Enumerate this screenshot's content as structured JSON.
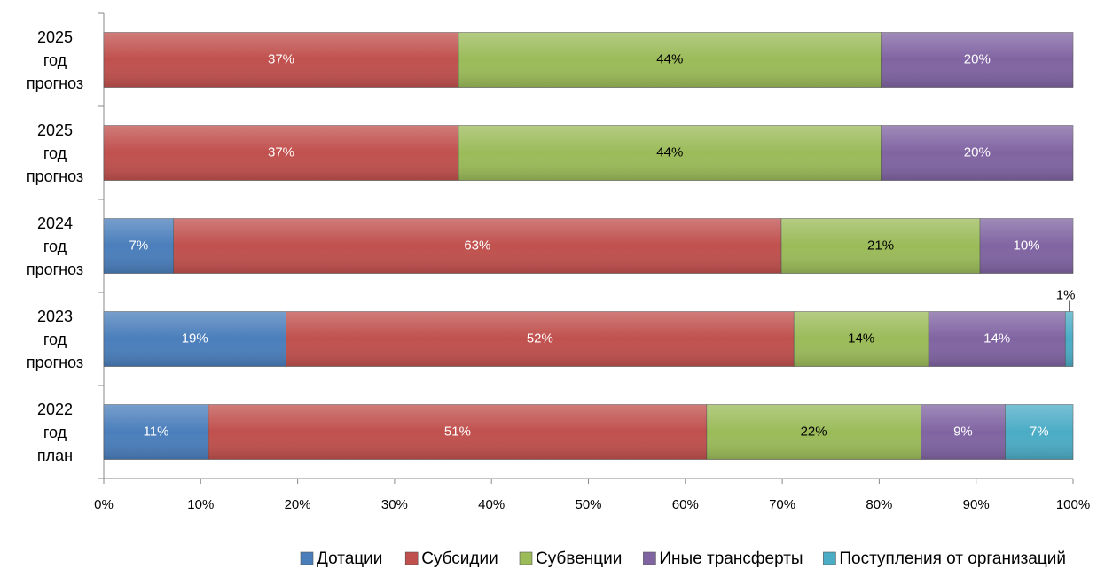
{
  "chart_data": {
    "type": "bar",
    "orientation": "horizontal",
    "stacked": true,
    "categories": [
      "2022\nгод\nплан",
      "2023\nгод\nпрогноз",
      "2024\nгод\nпрогноз",
      "2025\nгод\nпрогноз",
      "2025\nгод\nпрогноз"
    ],
    "series": [
      {
        "name": "Дотации",
        "color": "#4a7ebb",
        "label_color": "#ffffff",
        "values": [
          10.8,
          18.8,
          7.2,
          0,
          0
        ],
        "value_labels": [
          "11%",
          "19%",
          "7%",
          null,
          null
        ]
      },
      {
        "name": "Субсидии",
        "color": "#c0504d",
        "label_color": "#ffffff",
        "values": [
          51.4,
          52.4,
          62.7,
          36.6,
          36.6
        ],
        "value_labels": [
          "51%",
          "52%",
          "63%",
          "37%",
          "37%"
        ]
      },
      {
        "name": "Субвенции",
        "color": "#9bbb59",
        "label_color": "#000000",
        "values": [
          22.1,
          13.9,
          20.5,
          43.6,
          43.6
        ],
        "value_labels": [
          "22%",
          "14%",
          "21%",
          "44%",
          "44%"
        ]
      },
      {
        "name": "Иные трансферты",
        "color": "#8064a2",
        "label_color": "#ffffff",
        "values": [
          8.7,
          14.1,
          9.6,
          19.8,
          19.8
        ],
        "value_labels": [
          "9%",
          "14%",
          "10%",
          "20%",
          "20%"
        ]
      },
      {
        "name": "Поступления от организаций",
        "color": "#4bacc6",
        "label_color": "#ffffff",
        "values": [
          7.0,
          0.8,
          0,
          0,
          0
        ],
        "value_labels": [
          "7%",
          "1%",
          null,
          null,
          null
        ]
      }
    ],
    "xlim": [
      0,
      100
    ],
    "xticks": [
      {
        "value": 0,
        "label": "0%"
      },
      {
        "value": 10,
        "label": "10%"
      },
      {
        "value": 20,
        "label": "20%"
      },
      {
        "value": 30,
        "label": "30%"
      },
      {
        "value": 40,
        "label": "40%"
      },
      {
        "value": 50,
        "label": "50%"
      },
      {
        "value": 60,
        "label": "60%"
      },
      {
        "value": 70,
        "label": "70%"
      },
      {
        "value": 80,
        "label": "80%"
      },
      {
        "value": 90,
        "label": "90%"
      },
      {
        "value": 100,
        "label": "100%"
      }
    ],
    "legend": "bottom"
  }
}
